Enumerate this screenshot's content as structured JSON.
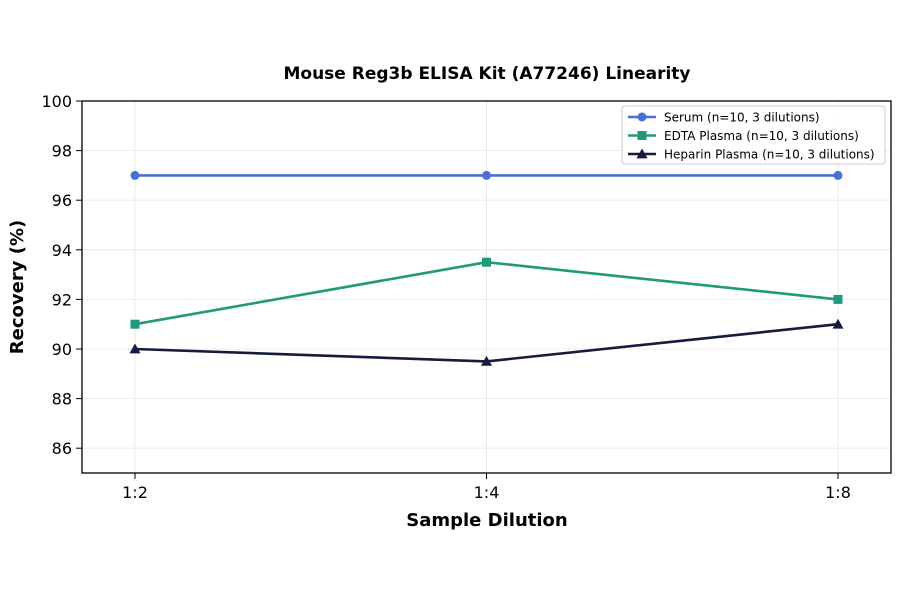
{
  "chart_data": {
    "type": "line",
    "title": "Mouse Reg3b ELISA Kit (A77246) Linearity",
    "xlabel": "Sample Dilution",
    "ylabel": "Recovery (%)",
    "categories": [
      "1:2",
      "1:4",
      "1:8"
    ],
    "ylim": [
      85,
      100
    ],
    "yticks": [
      86,
      88,
      90,
      92,
      94,
      96,
      98,
      100
    ],
    "grid": true,
    "legend_position": "top-right",
    "series": [
      {
        "name": "Serum (n=10, 3 dilutions)",
        "values": [
          97,
          97,
          97
        ],
        "color": "#4a6fd8",
        "marker": "circle"
      },
      {
        "name": "EDTA Plasma (n=10, 3 dilutions)",
        "values": [
          91,
          93.5,
          92
        ],
        "color": "#22997a",
        "marker": "square"
      },
      {
        "name": "Heparin Plasma (n=10, 3 dilutions)",
        "values": [
          90,
          89.5,
          91
        ],
        "color": "#151c3d",
        "marker": "triangle"
      }
    ]
  }
}
